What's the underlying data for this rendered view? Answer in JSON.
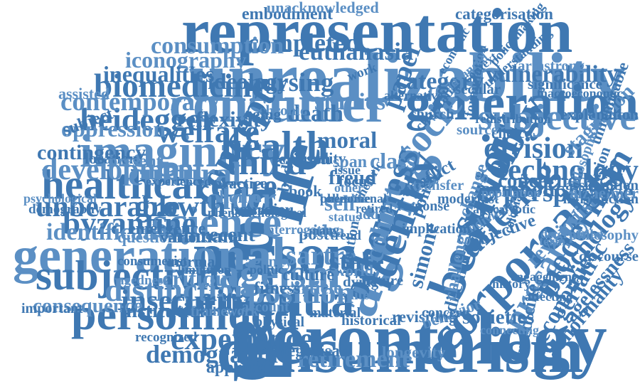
{
  "colors": {
    "primary": "#3f78b2",
    "secondary": "#5b8fc4",
    "background": "#ffffff"
  },
  "words": [
    {
      "text": "social",
      "weight": 1.0,
      "rotate": 90
    },
    {
      "text": "gerontology",
      "weight": 0.9,
      "rotate": 0
    },
    {
      "text": "unrealizability",
      "weight": 0.85,
      "rotate": 0
    },
    {
      "text": "consumerism",
      "weight": 0.78,
      "rotate": 0
    },
    {
      "text": "representation",
      "weight": 0.76,
      "rotate": 0
    },
    {
      "text": "ageing",
      "weight": 0.76,
      "rotate": -70
    },
    {
      "text": "life",
      "weight": 0.72,
      "rotate": -75
    },
    {
      "text": "person",
      "weight": 0.68,
      "rotate": 0
    },
    {
      "text": "consumer",
      "weight": 0.62,
      "rotate": 0
    },
    {
      "text": "generation",
      "weight": 0.6,
      "rotate": 0
    },
    {
      "text": "beauvoir",
      "weight": 0.6,
      "rotate": -70
    },
    {
      "text": "generational",
      "weight": 0.6,
      "rotate": 0
    },
    {
      "text": "corporeality",
      "weight": 0.58,
      "rotate": -45
    },
    {
      "text": "dementia",
      "weight": 0.55,
      "rotate": 0
    },
    {
      "text": "imaginary",
      "weight": 0.55,
      "rotate": 0
    },
    {
      "text": "personhood",
      "weight": 0.53,
      "rotate": 0
    },
    {
      "text": "identity",
      "weight": 0.5,
      "rotate": -70
    },
    {
      "text": "science",
      "weight": 0.5,
      "rotate": 0
    },
    {
      "text": "healthcare",
      "weight": 0.48,
      "rotate": 0
    },
    {
      "text": "subjectivity",
      "weight": 0.48,
      "rotate": 0
    },
    {
      "text": "ageism",
      "weight": 0.47,
      "rotate": 0
    },
    {
      "text": "health",
      "weight": 0.46,
      "rotate": 0
    },
    {
      "text": "concept",
      "weight": 0.44,
      "rotate": -60
    },
    {
      "text": "society",
      "weight": 0.44,
      "rotate": -50
    },
    {
      "text": "otherness",
      "weight": 0.44,
      "rotate": -70
    },
    {
      "text": "sociology",
      "weight": 0.44,
      "rotate": -60
    },
    {
      "text": "subjective",
      "weight": 0.42,
      "rotate": 0
    },
    {
      "text": "third",
      "weight": 0.42,
      "rotate": 0
    },
    {
      "text": "suffering",
      "weight": 0.4,
      "rotate": -45
    },
    {
      "text": "precarity",
      "weight": 0.38,
      "rotate": -60
    },
    {
      "text": "modernism",
      "weight": 0.38,
      "rotate": -60
    },
    {
      "text": "biomedicine",
      "weight": 0.37,
      "rotate": 0
    },
    {
      "text": "cultural",
      "weight": 0.37,
      "rotate": 0
    },
    {
      "text": "welfare",
      "weight": 0.36,
      "rotate": 0
    },
    {
      "text": "heidegger",
      "weight": 0.36,
      "rotate": 0
    },
    {
      "text": "distinction",
      "weight": 0.36,
      "rotate": 0
    },
    {
      "text": "byzantine",
      "weight": 0.35,
      "rotate": 0
    },
    {
      "text": "experience",
      "weight": 0.34,
      "rotate": 0
    },
    {
      "text": "position",
      "weight": 0.34,
      "rotate": 0
    },
    {
      "text": "insecurity",
      "weight": 0.33,
      "rotate": 0
    },
    {
      "text": "care",
      "weight": 0.34,
      "rotate": 0
    },
    {
      "text": "older",
      "weight": 0.34,
      "rotate": 0
    },
    {
      "text": "technology",
      "weight": 0.33,
      "rotate": 0
    },
    {
      "text": "division",
      "weight": 0.32,
      "rotate": 0
    },
    {
      "text": "development",
      "weight": 0.32,
      "rotate": 0
    },
    {
      "text": "unbearable",
      "weight": 0.32,
      "rotate": 0
    },
    {
      "text": "growth",
      "weight": 0.32,
      "rotate": 0
    },
    {
      "text": "sartre",
      "weight": 0.3,
      "rotate": 0
    },
    {
      "text": "state",
      "weight": 0.3,
      "rotate": 0
    },
    {
      "text": "paper",
      "weight": 0.3,
      "rotate": -70
    },
    {
      "text": "cohort",
      "weight": 0.3,
      "rotate": -75
    },
    {
      "text": "perspective",
      "weight": 0.29,
      "rotate": 0
    },
    {
      "text": "psychology",
      "weight": 0.29,
      "rotate": -50
    },
    {
      "text": "contemporary",
      "weight": 0.28,
      "rotate": 0
    },
    {
      "text": "nursing",
      "weight": 0.28,
      "rotate": 0
    },
    {
      "text": "demographic",
      "weight": 0.27,
      "rotate": 0
    },
    {
      "text": "retirement",
      "weight": 0.26,
      "rotate": 0
    },
    {
      "text": "completed",
      "weight": 0.27,
      "rotate": 0
    },
    {
      "text": "euthanasia",
      "weight": 0.26,
      "rotate": 0
    },
    {
      "text": "consumption",
      "weight": 0.25,
      "rotate": 0
    },
    {
      "text": "category",
      "weight": 0.25,
      "rotate": 0
    },
    {
      "text": "vulnerability",
      "weight": 0.25,
      "rotate": 0
    },
    {
      "text": "identification",
      "weight": 0.25,
      "rotate": 0
    },
    {
      "text": "economies",
      "weight": 0.24,
      "rotate": -60
    },
    {
      "text": "geriatric",
      "weight": 0.24,
      "rotate": -60
    },
    {
      "text": "iconography",
      "weight": 0.23,
      "rotate": 0
    },
    {
      "text": "inequalities",
      "weight": 0.23,
      "rotate": 0
    },
    {
      "text": "ideology",
      "weight": 0.23,
      "rotate": 0
    },
    {
      "text": "studies",
      "weight": 0.25,
      "rotate": 0
    },
    {
      "text": "death",
      "weight": 0.24,
      "rotate": 0
    },
    {
      "text": "moral",
      "weight": 0.24,
      "rotate": 0
    },
    {
      "text": "oppression",
      "weight": 0.23,
      "rotate": 0
    },
    {
      "text": "reflexivity",
      "weight": 0.22,
      "rotate": 0
    },
    {
      "text": "contingency",
      "weight": 0.21,
      "rotate": 0
    },
    {
      "text": "critique",
      "weight": 0.23,
      "rotate": 0
    },
    {
      "text": "recent",
      "weight": 0.2,
      "rotate": 0
    },
    {
      "text": "human",
      "weight": 0.2,
      "rotate": 0
    },
    {
      "text": "consequence",
      "weight": 0.2,
      "rotate": 0
    },
    {
      "text": "institution",
      "weight": 0.2,
      "rotate": 0
    },
    {
      "text": "simone",
      "weight": 0.22,
      "rotate": -75
    },
    {
      "text": "class",
      "weight": 0.23,
      "rotate": 0
    },
    {
      "text": "symbolic",
      "weight": 0.22,
      "rotate": 0
    },
    {
      "text": "concerned",
      "weight": 0.2,
      "rotate": 0
    },
    {
      "text": "stagnation",
      "weight": 0.2,
      "rotate": -45
    },
    {
      "text": "abnormality",
      "weight": 0.2,
      "rotate": -50
    },
    {
      "text": "agelessness",
      "weight": 0.2,
      "rotate": -50
    },
    {
      "text": "revisionist",
      "weight": 0.2,
      "rotate": -45
    },
    {
      "text": "societies",
      "weight": 0.2,
      "rotate": 0
    },
    {
      "text": "medicine",
      "weight": 0.18,
      "rotate": -80
    },
    {
      "text": "self",
      "weight": 0.22,
      "rotate": 0
    },
    {
      "text": "freud",
      "weight": 0.2,
      "rotate": 0
    },
    {
      "text": "dilemma",
      "weight": 0.18,
      "rotate": -75
    },
    {
      "text": "challenge",
      "weight": 0.18,
      "rotate": -80
    },
    {
      "text": "conflict",
      "weight": 0.18,
      "rotate": -30
    },
    {
      "text": "policy",
      "weight": 0.18,
      "rotate": -70
    },
    {
      "text": "change",
      "weight": 0.18,
      "rotate": -70
    },
    {
      "text": "objective",
      "weight": 0.17,
      "rotate": -20
    },
    {
      "text": "emergence",
      "weight": 0.16,
      "rotate": 0
    },
    {
      "text": "question",
      "weight": 0.15,
      "rotate": 0
    },
    {
      "text": "various",
      "weight": 0.15,
      "rotate": 0
    },
    {
      "text": "embodiment",
      "weight": 0.16,
      "rotate": 0
    },
    {
      "text": "unacknowledged",
      "weight": 0.14,
      "rotate": 0
    },
    {
      "text": "categorisation",
      "weight": 0.15,
      "rotate": 0
    },
    {
      "text": "categorisati",
      "weight": 0.16,
      "rotate": 0
    },
    {
      "text": "longevity",
      "weight": 0.15,
      "rotate": 0
    },
    {
      "text": "revisiting",
      "weight": 0.15,
      "rotate": 0
    },
    {
      "text": "approach",
      "weight": 0.16,
      "rotate": 0
    },
    {
      "text": "behavior",
      "weight": 0.15,
      "rotate": -20
    },
    {
      "text": "historical",
      "weight": 0.13,
      "rotate": 0
    },
    {
      "text": "attention",
      "weight": 0.13,
      "rotate": -80
    },
    {
      "text": "article",
      "weight": 0.18,
      "rotate": 0
    },
    {
      "text": "culture",
      "weight": 0.16,
      "rotate": 0
    },
    {
      "text": "fitness",
      "weight": 0.16,
      "rotate": 0
    },
    {
      "text": "agency",
      "weight": 0.15,
      "rotate": 0
    },
    {
      "text": "normal",
      "weight": 0.14,
      "rotate": 0
    },
    {
      "text": "location",
      "weight": 0.14,
      "rotate": 0
    },
    {
      "text": "present",
      "weight": 0.16,
      "rotate": 0
    },
    {
      "text": "bourdieu",
      "weight": 0.15,
      "rotate": 0
    },
    {
      "text": "practice",
      "weight": 0.14,
      "rotate": 0
    },
    {
      "text": "home",
      "weight": 0.17,
      "rotate": 0
    },
    {
      "text": "erikson",
      "weight": 0.15,
      "rotate": 0
    },
    {
      "text": "reality",
      "weight": 0.14,
      "rotate": 0
    },
    {
      "text": "span",
      "weight": 0.16,
      "rotate": 0
    },
    {
      "text": "focus",
      "weight": 0.14,
      "rotate": 0
    },
    {
      "text": "post",
      "weight": 0.16,
      "rotate": 0
    },
    {
      "text": "idea",
      "weight": 0.17,
      "rotate": 0
    },
    {
      "text": "body",
      "weight": 0.16,
      "rotate": -80
    },
    {
      "text": "book",
      "weight": 0.14,
      "rotate": 0
    },
    {
      "text": "chronic",
      "weight": 0.13,
      "rotate": 0
    },
    {
      "text": "aging",
      "weight": 0.14,
      "rotate": 0
    },
    {
      "text": "subject",
      "weight": 0.16,
      "rotate": -20
    },
    {
      "text": "assisted",
      "weight": 0.14,
      "rotate": 0
    },
    {
      "text": "significance",
      "weight": 0.13,
      "rotate": 0
    },
    {
      "text": "macroeconomic",
      "weight": 0.1,
      "rotate": 0
    },
    {
      "text": "addresses",
      "weight": 0.15,
      "rotate": 0
    },
    {
      "text": "explanation",
      "weight": 0.14,
      "rotate": 0
    },
    {
      "text": "introduction",
      "weight": 0.12,
      "rotate": 0
    },
    {
      "text": "alzheimer",
      "weight": 0.15,
      "rotate": 0
    },
    {
      "text": "exclusion",
      "weight": 0.14,
      "rotate": -70
    },
    {
      "text": "unrealizable",
      "weight": 0.15,
      "rotate": -70
    },
    {
      "text": "philosophical",
      "weight": 0.12,
      "rotate": -70
    },
    {
      "text": "assumption",
      "weight": 0.13,
      "rotate": 0
    },
    {
      "text": "discourse",
      "weight": 0.13,
      "rotate": 0
    },
    {
      "text": "philosophy",
      "weight": 0.13,
      "rotate": 0
    },
    {
      "text": "formulation",
      "weight": 0.12,
      "rotate": -80
    },
    {
      "text": "policymaking",
      "weight": 0.11,
      "rotate": -50
    },
    {
      "text": "armstrong",
      "weight": 0.13,
      "rotate": 0
    },
    {
      "text": "understanding",
      "weight": 0.11,
      "rotate": -40
    },
    {
      "text": "charitable",
      "weight": 0.12,
      "rotate": -50
    },
    {
      "text": "individual",
      "weight": 0.11,
      "rotate": -30
    },
    {
      "text": "modernist",
      "weight": 0.12,
      "rotate": 0
    },
    {
      "text": "church",
      "weight": 0.13,
      "rotate": 0
    },
    {
      "text": "source",
      "weight": 0.13,
      "rotate": 0
    },
    {
      "text": "choice",
      "weight": 0.13,
      "rotate": 0
    },
    {
      "text": "secular",
      "weight": 0.13,
      "rotate": 0
    },
    {
      "text": "transfer",
      "weight": 0.13,
      "rotate": 0
    },
    {
      "text": "response",
      "weight": 0.12,
      "rotate": 0
    },
    {
      "text": "implication",
      "weight": 0.12,
      "rotate": 0
    },
    {
      "text": "world",
      "weight": 0.14,
      "rotate": 0
    },
    {
      "text": "dying",
      "weight": 0.13,
      "rotate": 0
    },
    {
      "text": "nature",
      "weight": 0.13,
      "rotate": 0
    },
    {
      "text": "edited",
      "weight": 0.12,
      "rotate": 0
    },
    {
      "text": "concern",
      "weight": 0.12,
      "rotate": 0
    },
    {
      "text": "material",
      "weight": 0.12,
      "rotate": 0
    },
    {
      "text": "account",
      "weight": 0.12,
      "rotate": 0
    },
    {
      "text": "physical",
      "weight": 0.12,
      "rotate": 0
    },
    {
      "text": "conclude",
      "weight": 0.12,
      "rotate": 0
    },
    {
      "text": "framework",
      "weight": 0.12,
      "rotate": 0
    },
    {
      "text": "important",
      "weight": 0.12,
      "rotate": 0
    },
    {
      "text": "recognized",
      "weight": 0.11,
      "rotate": 0
    },
    {
      "text": "agedness",
      "weight": 0.11,
      "rotate": 0
    },
    {
      "text": "consumerist",
      "weight": 0.11,
      "rotate": 0
    },
    {
      "text": "demography",
      "weight": 0.11,
      "rotate": 0
    },
    {
      "text": "psychological",
      "weight": 0.1,
      "rotate": 0
    },
    {
      "text": "experienced",
      "weight": 0.1,
      "rotate": 0
    },
    {
      "text": "phenomenological",
      "weight": 0.1,
      "rotate": 0
    },
    {
      "text": "interrogating",
      "weight": 0.11,
      "rotate": 0
    },
    {
      "text": "limitation",
      "weight": 0.1,
      "rotate": 0
    },
    {
      "text": "politic",
      "weight": 0.1,
      "rotate": 0
    },
    {
      "text": "status",
      "weight": 0.1,
      "rotate": 0
    },
    {
      "text": "rhetoric",
      "weight": 0.1,
      "rotate": -60
    },
    {
      "text": "retired",
      "weight": 0.1,
      "rotate": 0
    },
    {
      "text": "addr",
      "weight": 0.12,
      "rotate": 0
    },
    {
      "text": "trend",
      "weight": 0.11,
      "rotate": 0
    },
    {
      "text": "many",
      "weight": 0.1,
      "rotate": 0
    },
    {
      "text": "other",
      "weight": 0.1,
      "rotate": 0
    },
    {
      "text": "issue",
      "weight": 0.1,
      "rotate": 0
    },
    {
      "text": "work",
      "weight": 0.11,
      "rotate": -20
    },
    {
      "text": "term",
      "weight": 0.1,
      "rotate": 0
    },
    {
      "text": "history",
      "weight": 0.1,
      "rotate": 0
    },
    {
      "text": "affecting",
      "weight": 0.1,
      "rotate": 0
    },
    {
      "text": "connecting",
      "weight": 0.1,
      "rotate": 0
    },
    {
      "text": "engagement",
      "weight": 0.1,
      "rotate": 0
    },
    {
      "text": "redistribution",
      "weight": 0.1,
      "rotate": 0
    },
    {
      "text": "determined",
      "weight": 0.1,
      "rotate": 0
    },
    {
      "text": "colonialism",
      "weight": 0.1,
      "rotate": -75
    },
    {
      "text": "apocalyptic",
      "weight": 0.1,
      "rotate": 0
    },
    {
      "text": "advanced",
      "weight": 0.1,
      "rotate": -40
    },
    {
      "text": "economic",
      "weight": 0.1,
      "rotate": -60
    },
    {
      "text": "context",
      "weight": 0.1,
      "rotate": -40
    },
    {
      "text": "population",
      "weight": 0.1,
      "rotate": 0
    },
    {
      "text": "alternative",
      "weight": 0.1,
      "rotate": 0
    },
    {
      "text": "collective",
      "weight": 0.1,
      "rotate": 0
    },
    {
      "text": "bearable",
      "weight": 0.1,
      "rotate": 0
    },
    {
      "text": "phenomenal",
      "weight": 0.1,
      "rotate": 0
    }
  ]
}
